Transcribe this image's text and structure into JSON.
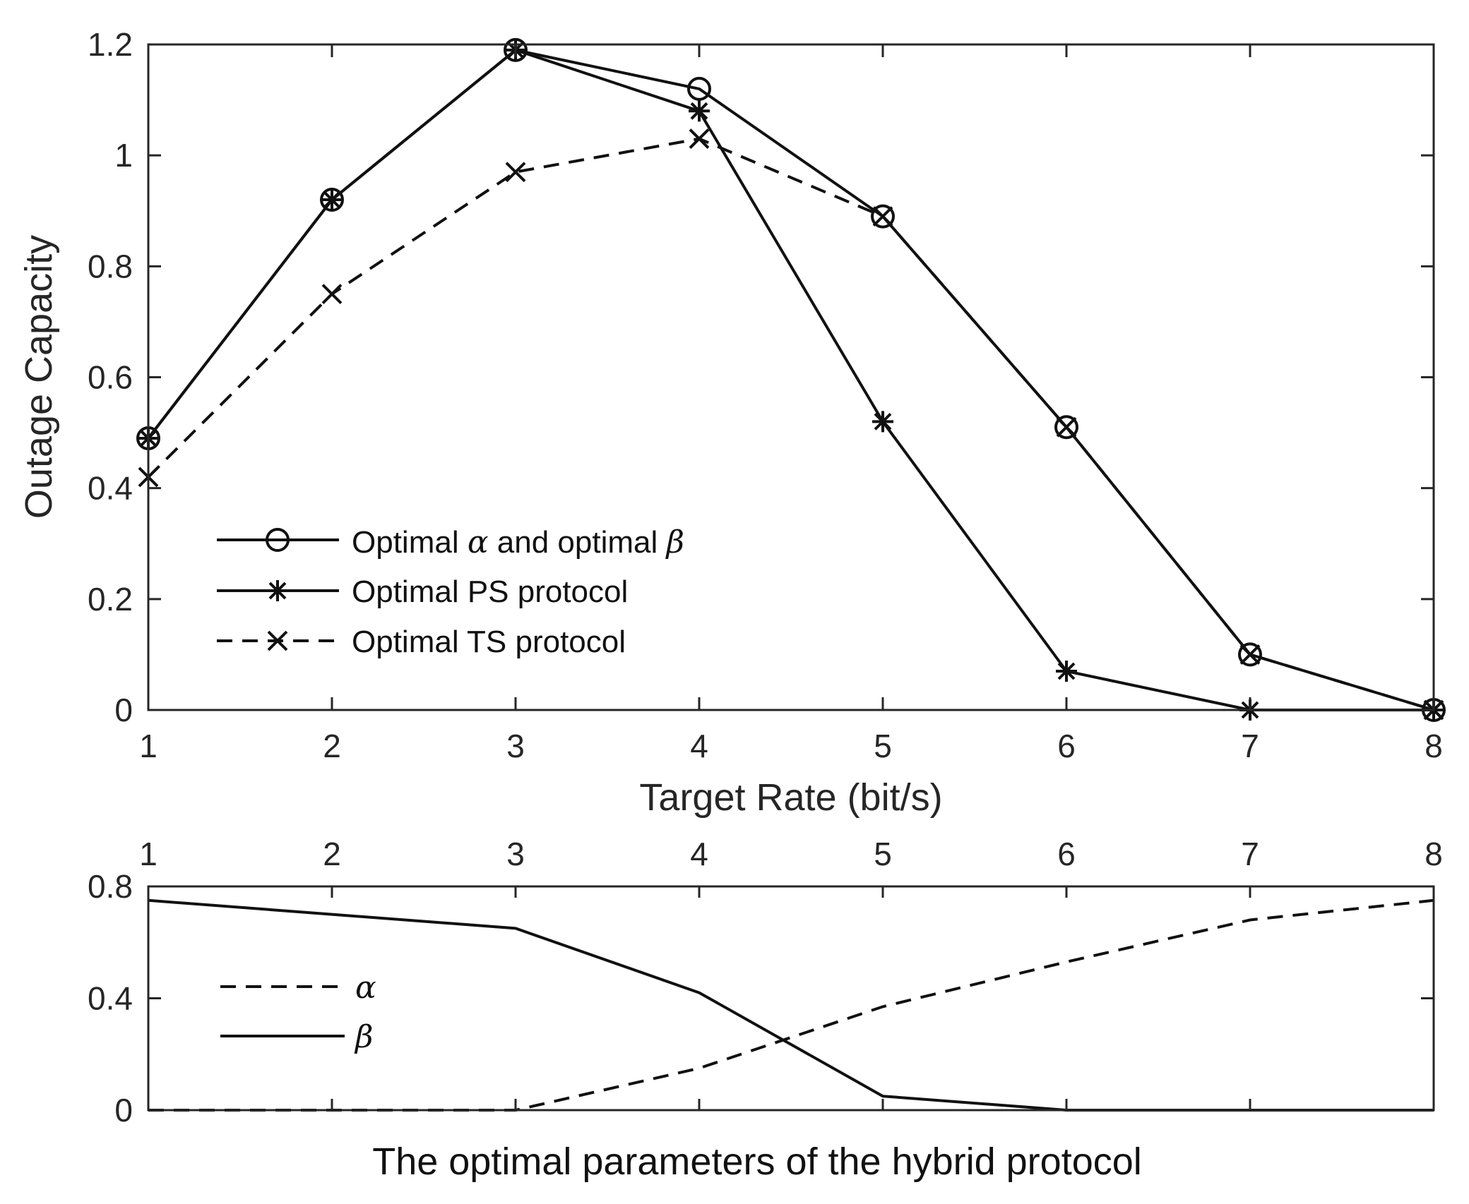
{
  "chart_data": [
    {
      "type": "line",
      "xlabel": "Target Rate (bit/s)",
      "ylabel": "Outage Capacity",
      "xlim": [
        1,
        8
      ],
      "ylim": [
        0,
        1.2
      ],
      "xticks": [
        "1",
        "2",
        "3",
        "4",
        "5",
        "6",
        "7",
        "8"
      ],
      "yticks": [
        "0",
        "0.2",
        "0.4",
        "0.6",
        "0.8",
        "1",
        "1.2"
      ],
      "grid": false,
      "legend_position": "bottom-left",
      "x": [
        1,
        2,
        3,
        4,
        5,
        6,
        7,
        8
      ],
      "series": [
        {
          "name": "Optimal α and optimal β",
          "prefix": "Optimal ",
          "sym1": "α",
          "mid": " and optimal ",
          "sym2": "β",
          "marker": "circle",
          "line": "solid",
          "values": [
            0.49,
            0.92,
            1.19,
            1.12,
            0.89,
            0.51,
            0.1,
            0.0
          ]
        },
        {
          "name": "Optimal PS protocol",
          "marker": "asterisk",
          "line": "solid",
          "values": [
            0.49,
            0.92,
            1.19,
            1.08,
            0.52,
            0.07,
            0.0,
            0.0
          ]
        },
        {
          "name": "Optimal TS protocol",
          "marker": "x",
          "line": "dashed",
          "values": [
            0.42,
            0.75,
            0.97,
            1.03,
            0.89,
            0.51,
            0.1,
            0.0
          ]
        }
      ]
    },
    {
      "type": "line",
      "title": "The optimal parameters of the hybrid protocol",
      "xlim": [
        1,
        8
      ],
      "ylim": [
        0,
        0.8
      ],
      "xticks": [
        "1",
        "2",
        "3",
        "4",
        "5",
        "6",
        "7",
        "8"
      ],
      "xticks_position": "top",
      "yticks": [
        "0",
        "0.4",
        "0.8"
      ],
      "grid": false,
      "legend_position": "middle-left",
      "x": [
        1,
        2,
        3,
        4,
        5,
        6,
        7,
        8
      ],
      "series": [
        {
          "name": "α",
          "line": "dashed",
          "values": [
            0.0,
            0.0,
            0.0,
            0.15,
            0.37,
            0.53,
            0.68,
            0.75
          ]
        },
        {
          "name": "β",
          "line": "solid",
          "values": [
            0.75,
            0.7,
            0.65,
            0.42,
            0.05,
            0.0,
            0.0,
            0.0
          ]
        }
      ]
    }
  ]
}
